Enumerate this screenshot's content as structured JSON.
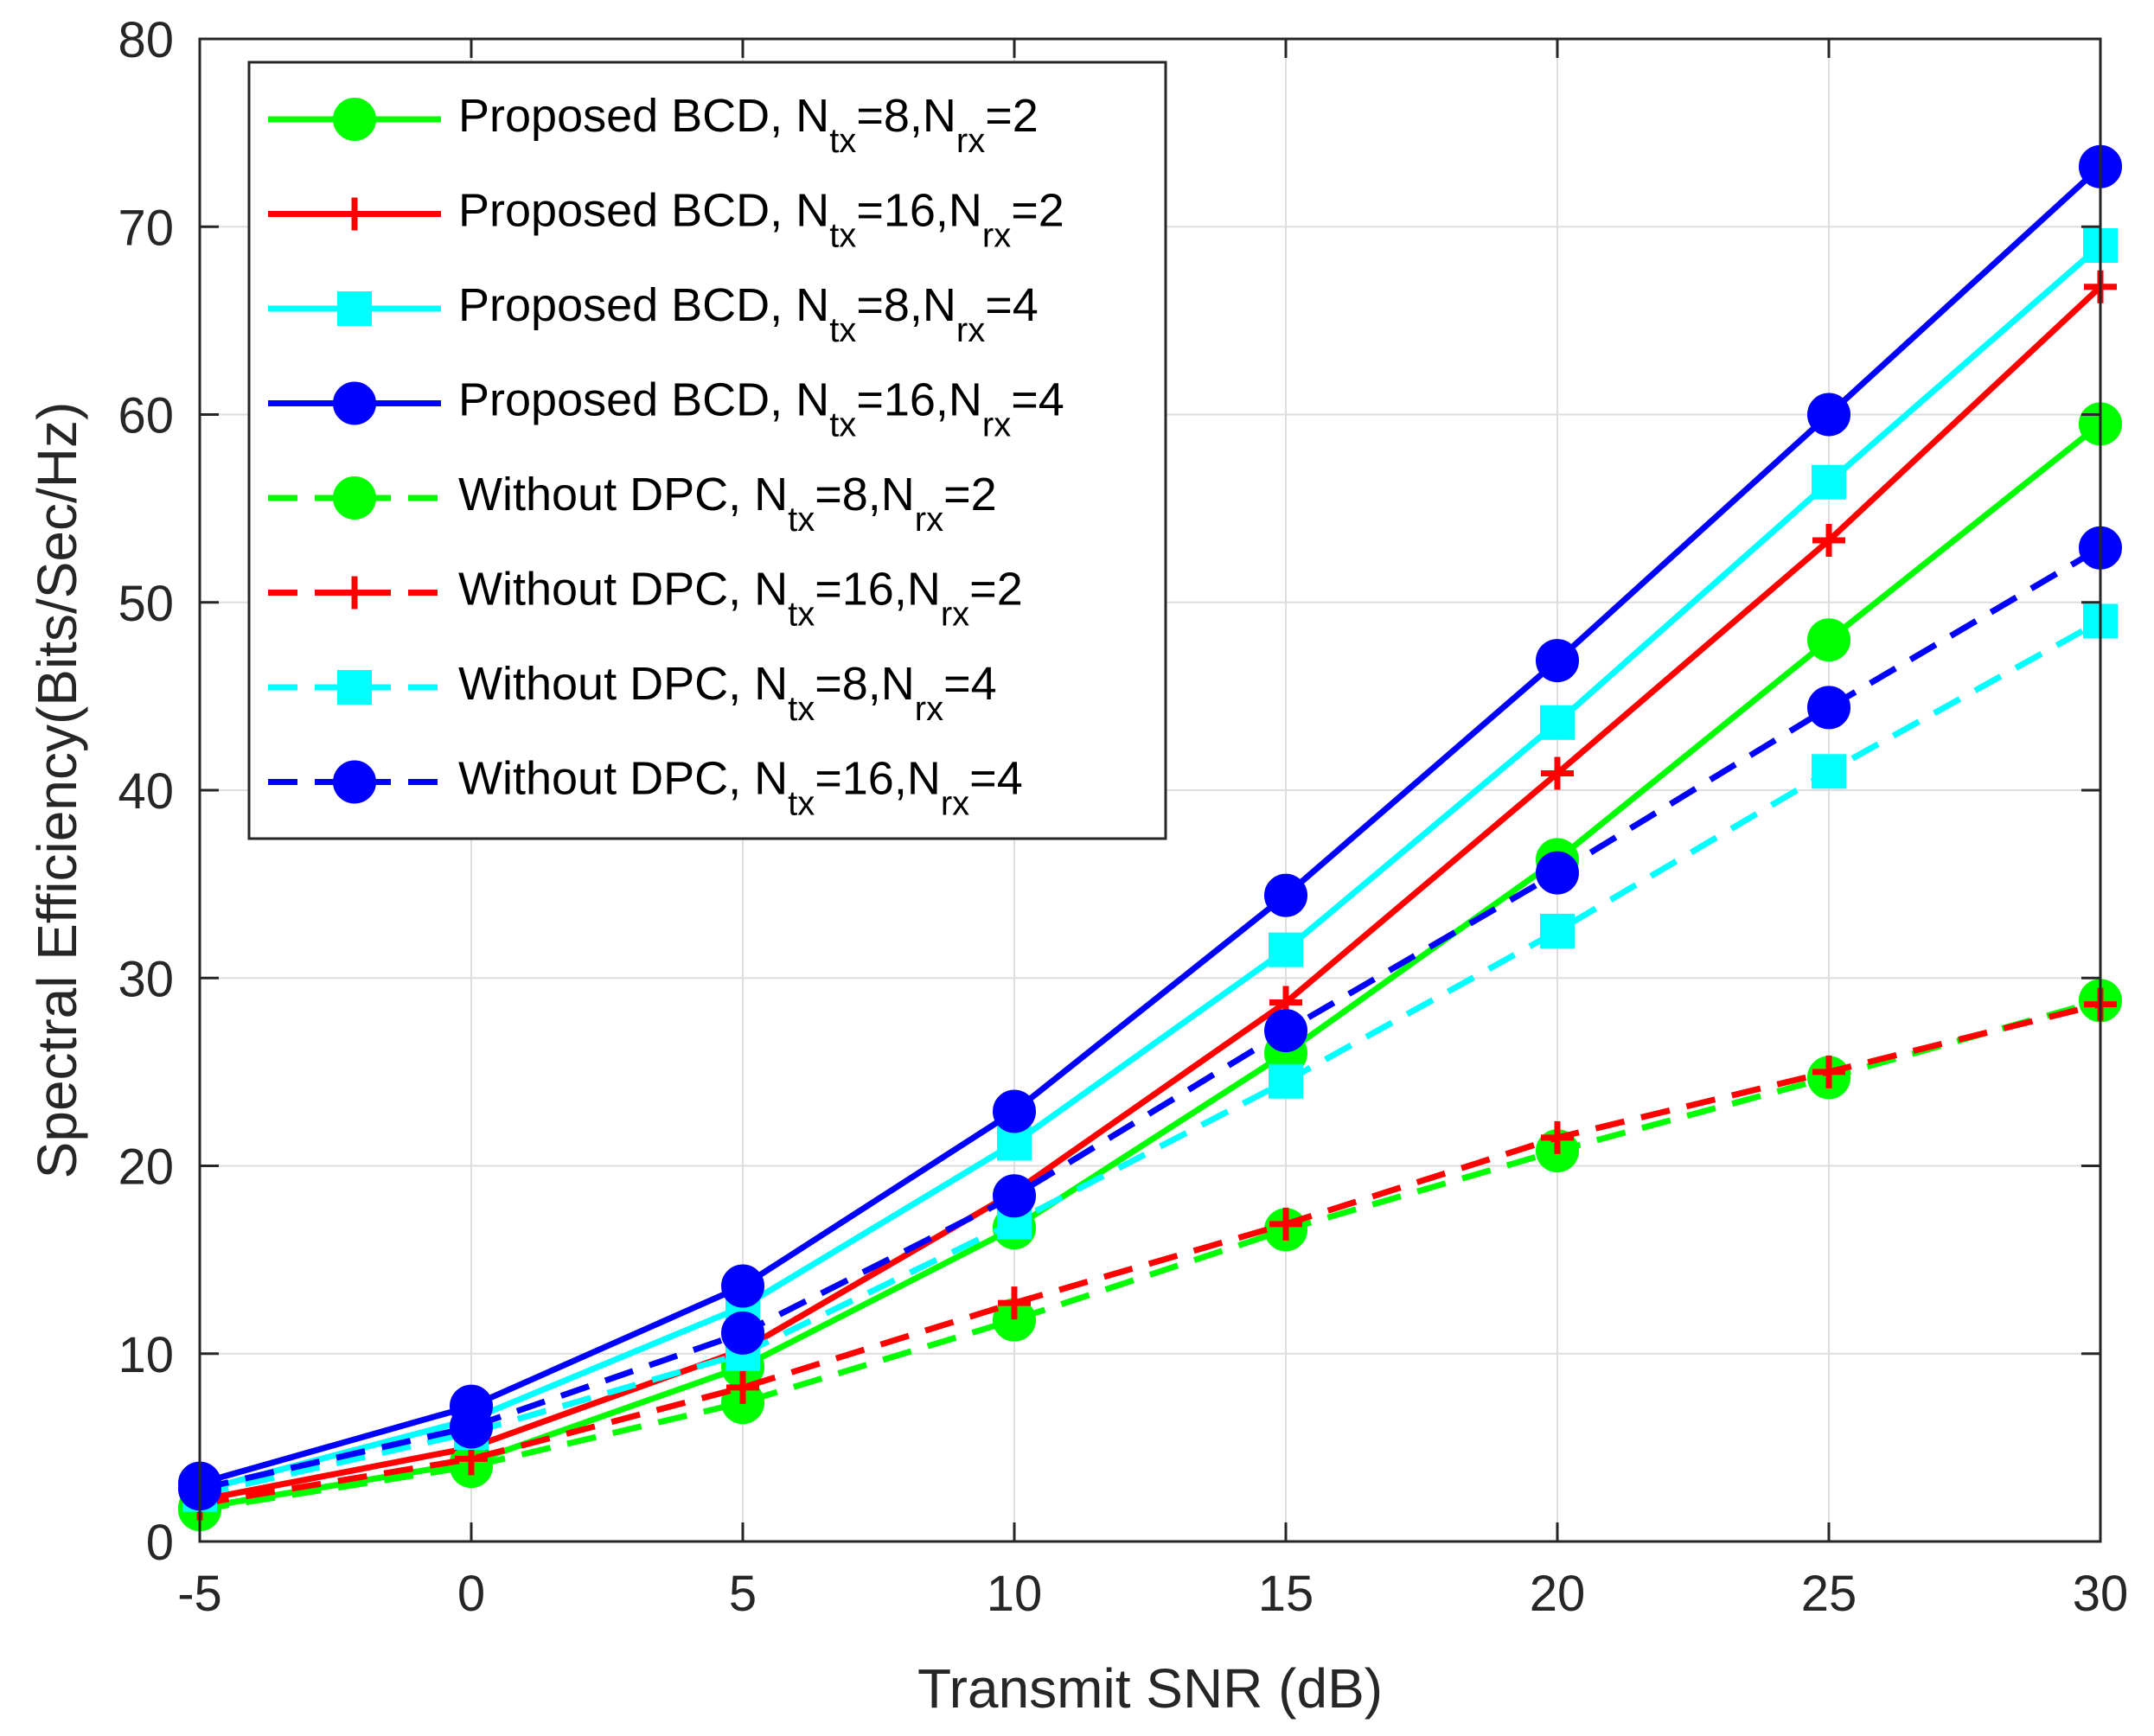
{
  "chart_data": {
    "type": "line",
    "xlabel": "Transmit SNR (dB)",
    "ylabel": "Spectral Efficiency(Bits/Sec/Hz)",
    "xlim": [
      -5,
      30
    ],
    "ylim": [
      0,
      80
    ],
    "x_ticks": [
      "-5",
      "0",
      "5",
      "10",
      "15",
      "20",
      "25",
      "30"
    ],
    "y_ticks": [
      "0",
      "10",
      "20",
      "30",
      "40",
      "50",
      "60",
      "70",
      "80"
    ],
    "grid": true,
    "legend_position": "top-left",
    "x": [
      -5,
      0,
      5,
      10,
      15,
      20,
      25,
      30
    ],
    "series": [
      {
        "name": "Proposed BCD, N_tx=8,N_rx=2",
        "legend": {
          "prefix": "Proposed BCD, N",
          "sub1": "tx",
          "mid": "=8,N",
          "sub2": "rx",
          "suffix": "=2"
        },
        "color": "#00ff00",
        "style": "solid",
        "marker": "circle",
        "values": [
          1.8,
          4.2,
          9.3,
          16.7,
          26.0,
          36.3,
          48.0,
          59.5
        ]
      },
      {
        "name": "Proposed BCD, N_tx=16,N_rx=2",
        "legend": {
          "prefix": "Proposed BCD, N",
          "sub1": "tx",
          "mid": "=16,N",
          "sub2": "rx",
          "suffix": "=2"
        },
        "color": "#ff0000",
        "style": "solid",
        "marker": "plus",
        "values": [
          2.2,
          5.0,
          10.2,
          18.6,
          28.7,
          40.9,
          53.3,
          66.8
        ]
      },
      {
        "name": "Proposed BCD, N_tx=8,N_rx=4",
        "legend": {
          "prefix": "Proposed BCD, N",
          "sub1": "tx",
          "mid": "=8,N",
          "sub2": "rx",
          "suffix": "=4"
        },
        "color": "#00ffff",
        "style": "solid",
        "marker": "square",
        "values": [
          2.7,
          6.5,
          12.5,
          21.2,
          31.5,
          43.6,
          56.4,
          69.0
        ]
      },
      {
        "name": "Proposed BCD, N_tx=16,N_rx=4",
        "legend": {
          "prefix": "Proposed BCD, N",
          "sub1": "tx",
          "mid": "=16,N",
          "sub2": "rx",
          "suffix": "=4"
        },
        "color": "#0000ff",
        "style": "solid",
        "marker": "circle",
        "values": [
          3.1,
          7.2,
          13.6,
          22.9,
          34.4,
          46.9,
          60.0,
          73.2
        ]
      },
      {
        "name": "Without DPC, N_tx=8,N_rx=2",
        "legend": {
          "prefix": "Without DPC, N",
          "sub1": "tx",
          "mid": "=8,N",
          "sub2": "rx",
          "suffix": "=2"
        },
        "color": "#00ff00",
        "style": "dashed",
        "marker": "circle",
        "values": [
          1.7,
          4.0,
          7.4,
          11.8,
          16.6,
          20.8,
          24.7,
          28.8
        ]
      },
      {
        "name": "Without DPC, N_tx=16,N_rx=2",
        "legend": {
          "prefix": "Without DPC, N",
          "sub1": "tx",
          "mid": "=16,N",
          "sub2": "rx",
          "suffix": "=2"
        },
        "color": "#ff0000",
        "style": "dashed",
        "marker": "plus",
        "values": [
          2.0,
          4.4,
          8.2,
          12.7,
          16.9,
          21.5,
          25.0,
          28.6
        ]
      },
      {
        "name": "Without DPC, N_tx=8,N_rx=4",
        "legend": {
          "prefix": "Without DPC, N",
          "sub1": "tx",
          "mid": "=8,N",
          "sub2": "rx",
          "suffix": "=4"
        },
        "color": "#00ffff",
        "style": "dashed",
        "marker": "square",
        "values": [
          2.5,
          5.8,
          10.0,
          17.0,
          24.5,
          32.5,
          41.0,
          49.0
        ]
      },
      {
        "name": "Without DPC, N_tx=16,N_rx=4",
        "legend": {
          "prefix": "Without DPC, N",
          "sub1": "tx",
          "mid": "=16,N",
          "sub2": "rx",
          "suffix": "=4"
        },
        "color": "#0000ff",
        "style": "dashed",
        "marker": "circle",
        "values": [
          2.8,
          6.1,
          11.1,
          18.4,
          27.2,
          35.6,
          44.4,
          52.9
        ]
      }
    ]
  }
}
